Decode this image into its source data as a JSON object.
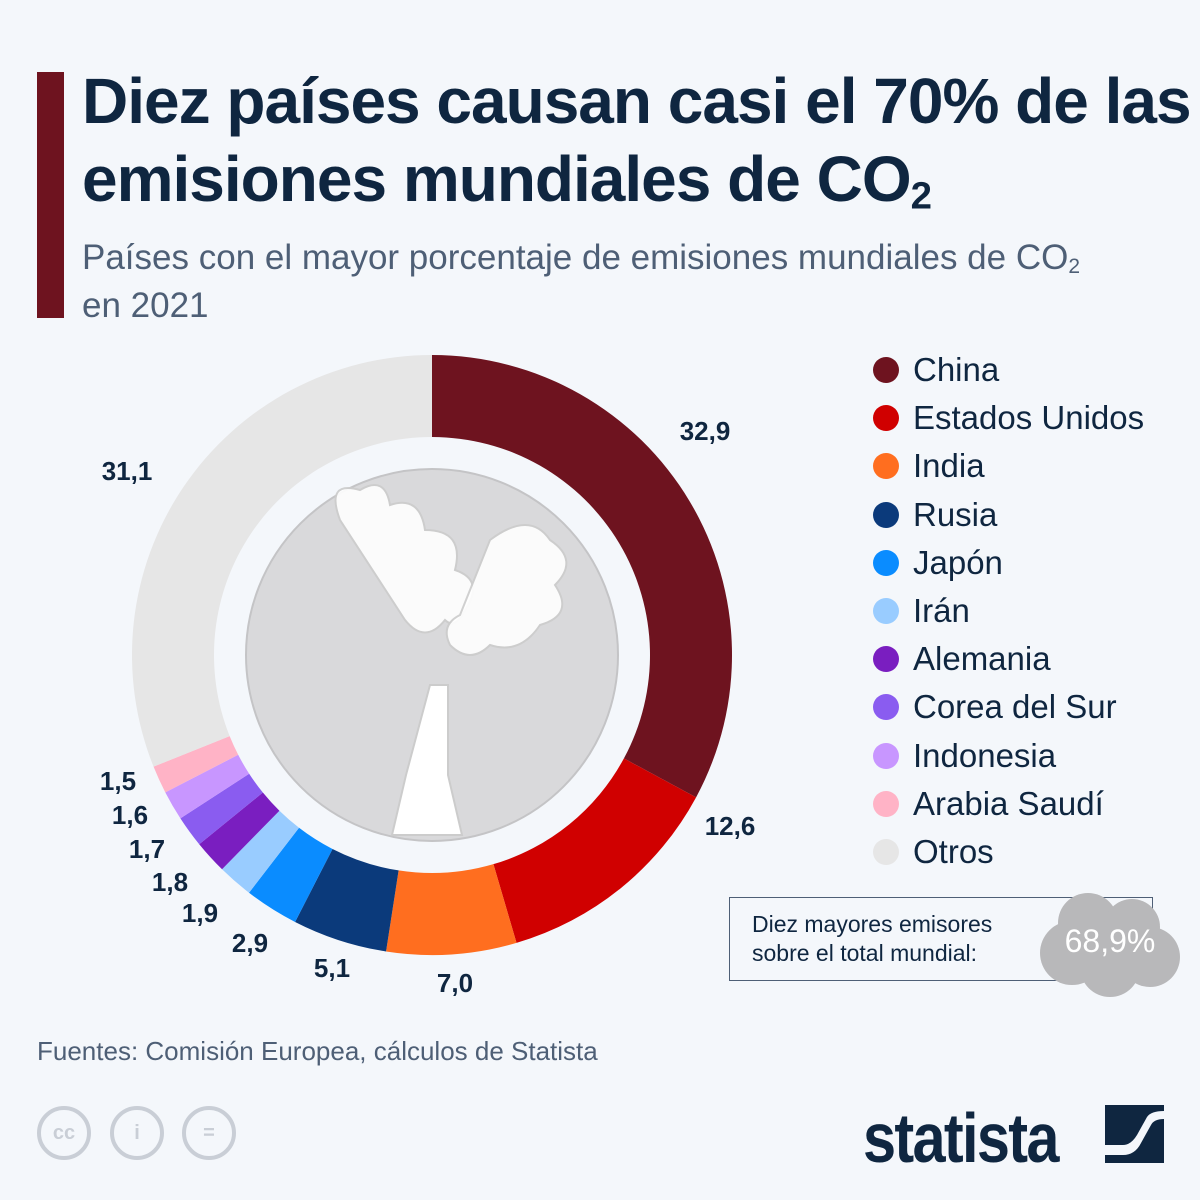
{
  "header": {
    "title_main": "Diez países causan casi el 70% de las emisiones mundiales de CO",
    "title_sub": "2",
    "subtitle_a": "Países con el mayor porcentaje de emisiones mundiales de CO",
    "subtitle_sub": "2",
    "subtitle_b": " en 2021"
  },
  "chart_data": {
    "type": "pie",
    "donut": true,
    "categories": [
      "China",
      "Estados Unidos",
      "India",
      "Rusia",
      "Japón",
      "Irán",
      "Alemania",
      "Corea del Sur",
      "Indonesia",
      "Arabia Saudí",
      "Otros"
    ],
    "values": [
      32.9,
      12.6,
      7.0,
      5.1,
      2.9,
      1.9,
      1.8,
      1.7,
      1.6,
      1.5,
      31.1
    ],
    "labels": [
      "32,9",
      "12,6",
      "7,0",
      "5,1",
      "2,9",
      "1,9",
      "1,8",
      "1,7",
      "1,6",
      "1,5",
      "31,1"
    ],
    "colors": [
      "#6e131f",
      "#d00000",
      "#ff6e1f",
      "#0b3a7b",
      "#0a8cff",
      "#99ccff",
      "#7a1ec0",
      "#8a5cf0",
      "#c896ff",
      "#ffb3c6",
      "#e6e6e6"
    ],
    "legend_position": "right"
  },
  "summary": {
    "text_line1": "Diez mayores emisores",
    "text_line2": "sobre el total mundial:",
    "value": "68,9%"
  },
  "footer": {
    "source": "Fuentes: Comisión Europea, cálculos de Statista",
    "logo": "statista",
    "cc_icons": [
      "cc-icon",
      "by-icon",
      "nd-icon"
    ]
  }
}
